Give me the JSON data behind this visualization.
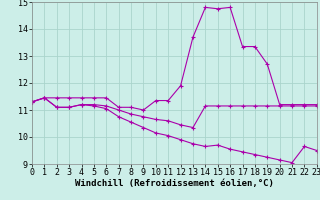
{
  "xlabel": "Windchill (Refroidissement éolien,°C)",
  "line1": {
    "x": [
      0,
      1,
      2,
      3,
      4,
      5,
      6,
      7,
      8,
      9,
      10,
      11,
      12,
      13,
      14,
      15,
      16,
      17,
      18,
      19,
      20,
      21,
      22,
      23
    ],
    "y": [
      11.3,
      11.45,
      11.45,
      11.45,
      11.45,
      11.45,
      11.45,
      11.1,
      11.1,
      11.0,
      11.35,
      11.35,
      11.9,
      13.7,
      14.8,
      14.75,
      14.8,
      13.35,
      13.35,
      12.7,
      11.2,
      11.2,
      11.2,
      11.2
    ]
  },
  "line2": {
    "x": [
      0,
      1,
      2,
      3,
      4,
      5,
      6,
      7,
      8,
      9,
      10,
      11,
      12,
      13,
      14,
      15,
      16,
      17,
      18,
      19,
      20,
      21,
      22,
      23
    ],
    "y": [
      11.3,
      11.45,
      11.1,
      11.1,
      11.2,
      11.2,
      11.15,
      11.0,
      10.85,
      10.75,
      10.65,
      10.6,
      10.45,
      10.35,
      11.15,
      11.15,
      11.15,
      11.15,
      11.15,
      11.15,
      11.15,
      11.15,
      11.15,
      11.15
    ]
  },
  "line3": {
    "x": [
      0,
      1,
      2,
      3,
      4,
      5,
      6,
      7,
      8,
      9,
      10,
      11,
      12,
      13,
      14,
      15,
      16,
      17,
      18,
      19,
      20,
      21,
      22,
      23
    ],
    "y": [
      11.3,
      11.45,
      11.1,
      11.1,
      11.2,
      11.15,
      11.05,
      10.75,
      10.55,
      10.35,
      10.15,
      10.05,
      9.9,
      9.75,
      9.65,
      9.7,
      9.55,
      9.45,
      9.35,
      9.25,
      9.15,
      9.05,
      9.65,
      9.5
    ]
  },
  "line_color": "#aa00aa",
  "bg_color": "#cceee8",
  "grid_color": "#aad4cc",
  "ylim": [
    9,
    15
  ],
  "xlim": [
    0,
    23
  ],
  "yticks": [
    9,
    10,
    11,
    12,
    13,
    14,
    15
  ],
  "xticks": [
    0,
    1,
    2,
    3,
    4,
    5,
    6,
    7,
    8,
    9,
    10,
    11,
    12,
    13,
    14,
    15,
    16,
    17,
    18,
    19,
    20,
    21,
    22,
    23
  ],
  "marker": "+",
  "markersize": 3,
  "linewidth": 0.8,
  "fontsize_label": 6.5,
  "fontsize_tick": 6.0
}
